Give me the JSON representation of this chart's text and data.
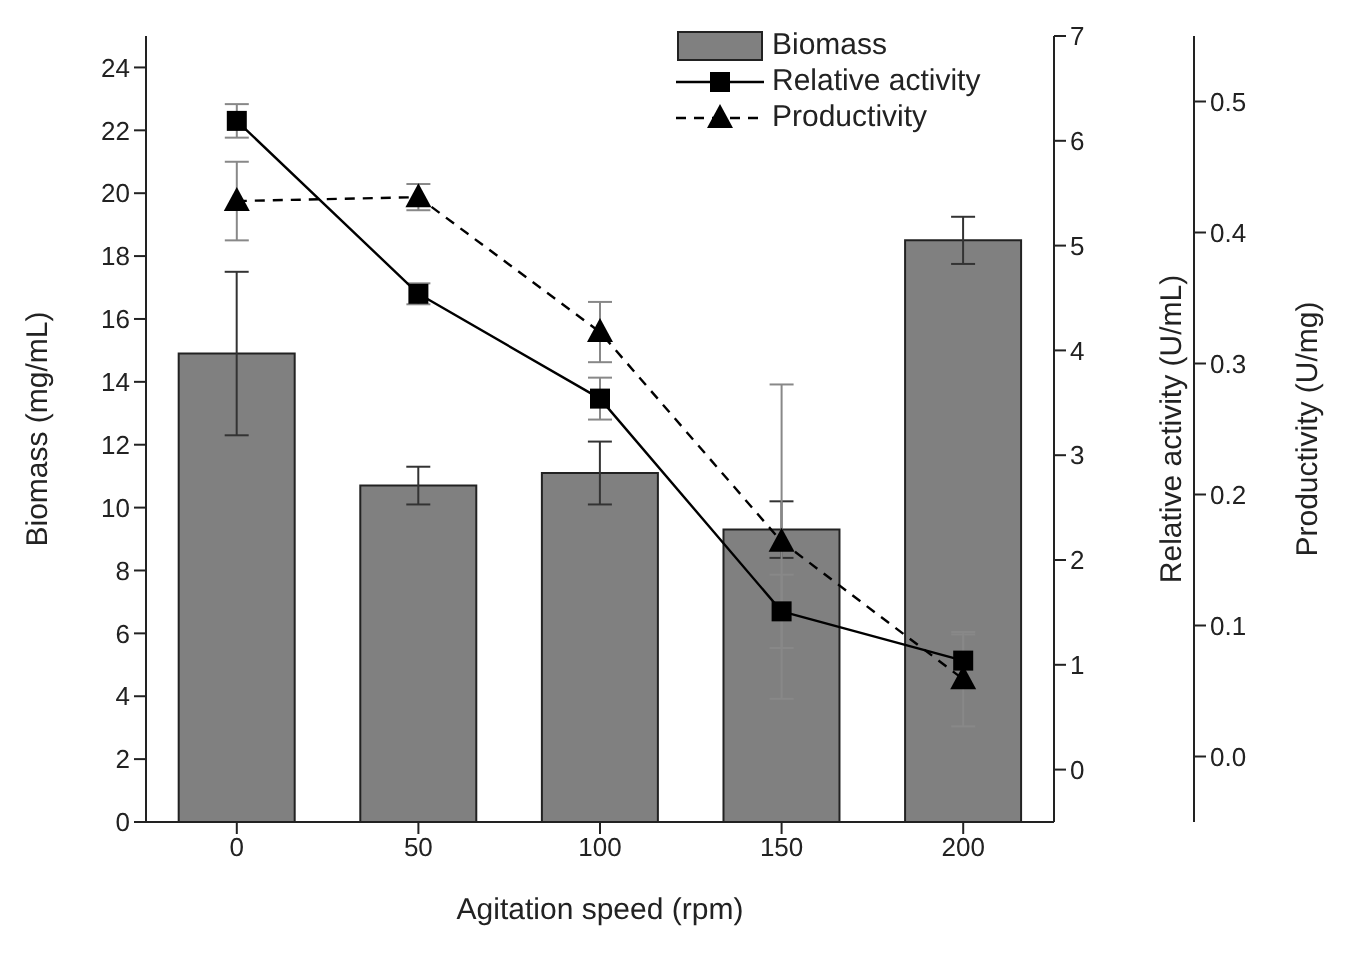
{
  "chart_data": {
    "type": "bar",
    "xlabel": "Agitation speed (rpm)",
    "ylabel": "Biomass (mg/mL)",
    "y2label": "Relative activity (U/mL)",
    "y3label": "Productivity (U/mg)",
    "categories": [
      "0",
      "50",
      "100",
      "150",
      "200"
    ],
    "series": [
      {
        "name": "Biomass",
        "type": "bar",
        "color": "#808080",
        "values": [
          14.9,
          10.7,
          11.1,
          9.3,
          18.5
        ],
        "errors": [
          2.6,
          0.6,
          1.0,
          0.9,
          0.75
        ]
      },
      {
        "name": "Relative activity",
        "type": "line",
        "axis": "y2",
        "color": "#000000",
        "marker": "square",
        "line_style": "solid",
        "values": [
          6.19,
          4.54,
          3.54,
          1.51,
          1.04
        ],
        "errors": [
          0.16,
          0.1,
          0.2,
          0.35,
          0.25
        ]
      },
      {
        "name": "Productivity",
        "type": "line",
        "axis": "y3",
        "color": "#000000",
        "marker": "triangle",
        "line_style": "dashed",
        "values": [
          0.424,
          0.427,
          0.324,
          0.164,
          0.059
        ],
        "errors": [
          0.03,
          0.01,
          0.023,
          0.12,
          0.036
        ]
      }
    ],
    "ylim": [
      0,
      25
    ],
    "yticks": [
      0,
      2,
      4,
      6,
      8,
      10,
      12,
      14,
      16,
      18,
      20,
      22,
      24
    ],
    "y2lim": [
      -0.5,
      7
    ],
    "y2ticks": [
      0,
      1,
      2,
      3,
      4,
      5,
      6,
      7
    ],
    "y3lim": [
      -0.05,
      0.55
    ],
    "y3ticks": [
      {
        "value": 0,
        "label": "0.0"
      },
      {
        "value": 0.1,
        "label": "0.1"
      },
      {
        "value": 0.2,
        "label": "0.2"
      },
      {
        "value": 0.3,
        "label": "0.3"
      },
      {
        "value": 0.4,
        "label": "0.4"
      },
      {
        "value": 0.5,
        "label": "0.5"
      }
    ],
    "legend": "top right",
    "grid": false
  }
}
